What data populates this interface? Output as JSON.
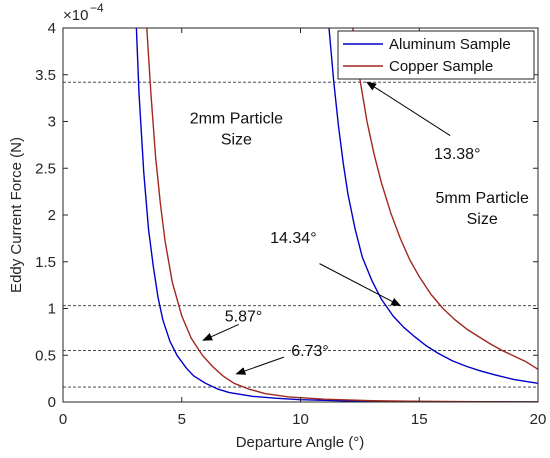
{
  "chart_data": {
    "type": "line",
    "xlabel": "Departure Angle (°)",
    "ylabel": "Eddy Current Force (N)",
    "y_multiplier_base": "×10",
    "y_multiplier_exp": "−4",
    "xlim": [
      0,
      20
    ],
    "ylim": [
      0,
      4
    ],
    "x_ticks": [
      0,
      5,
      10,
      15,
      20
    ],
    "y_ticks": [
      0,
      0.5,
      1,
      1.5,
      2,
      2.5,
      3,
      3.5,
      4
    ],
    "x_tick_labels": [
      "0",
      "5",
      "10",
      "15",
      "20"
    ],
    "y_tick_labels": [
      "0",
      "0.5",
      "1",
      "1.5",
      "2",
      "2.5",
      "3",
      "3.5",
      "4"
    ],
    "grid": false,
    "legend_position": "top-right",
    "series": [
      {
        "name": "Aluminum Sample",
        "color": "#0000c8",
        "group": "2mm",
        "points": [
          [
            3.09,
            4.0
          ],
          [
            3.2,
            3.3
          ],
          [
            3.4,
            2.45
          ],
          [
            3.6,
            1.85
          ],
          [
            3.8,
            1.45
          ],
          [
            4.0,
            1.12
          ],
          [
            4.2,
            0.88
          ],
          [
            4.5,
            0.65
          ],
          [
            4.8,
            0.5
          ],
          [
            5.2,
            0.36
          ],
          [
            5.5,
            0.28
          ],
          [
            6.0,
            0.2
          ],
          [
            6.5,
            0.14
          ],
          [
            7.0,
            0.1
          ],
          [
            8.0,
            0.06
          ],
          [
            9.0,
            0.04
          ],
          [
            10.0,
            0.025
          ],
          [
            12.0,
            0.012
          ],
          [
            14.0,
            0.005
          ],
          [
            17.0,
            0.002
          ],
          [
            20.0,
            0.001
          ]
        ]
      },
      {
        "name": "Copper Sample",
        "color": "#a0281e",
        "group": "2mm",
        "points": [
          [
            3.53,
            4.0
          ],
          [
            3.7,
            3.3
          ],
          [
            3.9,
            2.62
          ],
          [
            4.1,
            2.12
          ],
          [
            4.3,
            1.72
          ],
          [
            4.6,
            1.28
          ],
          [
            5.0,
            0.92
          ],
          [
            5.4,
            0.68
          ],
          [
            5.87,
            0.5
          ],
          [
            6.3,
            0.38
          ],
          [
            6.73,
            0.28
          ],
          [
            7.2,
            0.2
          ],
          [
            7.8,
            0.14
          ],
          [
            8.5,
            0.09
          ],
          [
            9.5,
            0.055
          ],
          [
            11.0,
            0.03
          ],
          [
            13.0,
            0.014
          ],
          [
            15.0,
            0.007
          ],
          [
            17.5,
            0.003
          ],
          [
            20.0,
            0.001
          ]
        ]
      },
      {
        "name": "Aluminum Sample",
        "color": "#0000c8",
        "group": "5mm",
        "points": [
          [
            11.2,
            4.0
          ],
          [
            11.4,
            3.42
          ],
          [
            11.6,
            2.95
          ],
          [
            11.8,
            2.55
          ],
          [
            12.0,
            2.22
          ],
          [
            12.3,
            1.85
          ],
          [
            12.6,
            1.55
          ],
          [
            13.0,
            1.3
          ],
          [
            13.4,
            1.1
          ],
          [
            13.9,
            0.92
          ],
          [
            14.34,
            0.8
          ],
          [
            14.8,
            0.7
          ],
          [
            15.3,
            0.6
          ],
          [
            15.8,
            0.52
          ],
          [
            16.4,
            0.44
          ],
          [
            17.0,
            0.38
          ],
          [
            17.6,
            0.33
          ],
          [
            18.2,
            0.29
          ],
          [
            19.0,
            0.24
          ],
          [
            20.0,
            0.2
          ]
        ]
      },
      {
        "name": "Copper Sample",
        "color": "#a0281e",
        "group": "5mm",
        "points": [
          [
            12.2,
            4.0
          ],
          [
            12.4,
            3.6
          ],
          [
            12.6,
            3.3
          ],
          [
            12.8,
            3.0
          ],
          [
            13.1,
            2.65
          ],
          [
            13.4,
            2.35
          ],
          [
            13.8,
            2.02
          ],
          [
            14.2,
            1.75
          ],
          [
            14.6,
            1.52
          ],
          [
            15.0,
            1.34
          ],
          [
            15.5,
            1.15
          ],
          [
            16.0,
            1.0
          ],
          [
            16.5,
            0.88
          ],
          [
            17.0,
            0.78
          ],
          [
            17.5,
            0.7
          ],
          [
            18.0,
            0.62
          ],
          [
            18.5,
            0.55
          ],
          [
            19.0,
            0.49
          ],
          [
            19.5,
            0.43
          ],
          [
            20.0,
            0.35
          ]
        ]
      }
    ],
    "reference_lines": [
      3.42,
      1.03,
      0.55,
      0.16
    ],
    "annotations": [
      {
        "lines": [
          "2mm Particle",
          "Size"
        ],
        "x": 7.3,
        "y": 2.98
      },
      {
        "lines": [
          "5mm Particle",
          "Size"
        ],
        "x": 17.65,
        "y": 2.13
      },
      {
        "lines": [
          "13.38°"
        ],
        "x": 16.6,
        "y": 2.6,
        "arrow_from": [
          16.3,
          2.85
        ],
        "arrow_to": [
          12.8,
          3.42
        ]
      },
      {
        "lines": [
          "14.34°"
        ],
        "x": 9.7,
        "y": 1.7,
        "arrow_from": [
          10.8,
          1.48
        ],
        "arrow_to": [
          14.2,
          1.03
        ]
      },
      {
        "lines": [
          "5.87°"
        ],
        "x": 7.6,
        "y": 0.86,
        "arrow_from": [
          7.4,
          0.83
        ],
        "arrow_to": [
          5.9,
          0.66
        ]
      },
      {
        "lines": [
          "6.73°"
        ],
        "x": 10.4,
        "y": 0.49,
        "arrow_from": [
          9.3,
          0.48
        ],
        "arrow_to": [
          7.3,
          0.3
        ]
      }
    ]
  }
}
